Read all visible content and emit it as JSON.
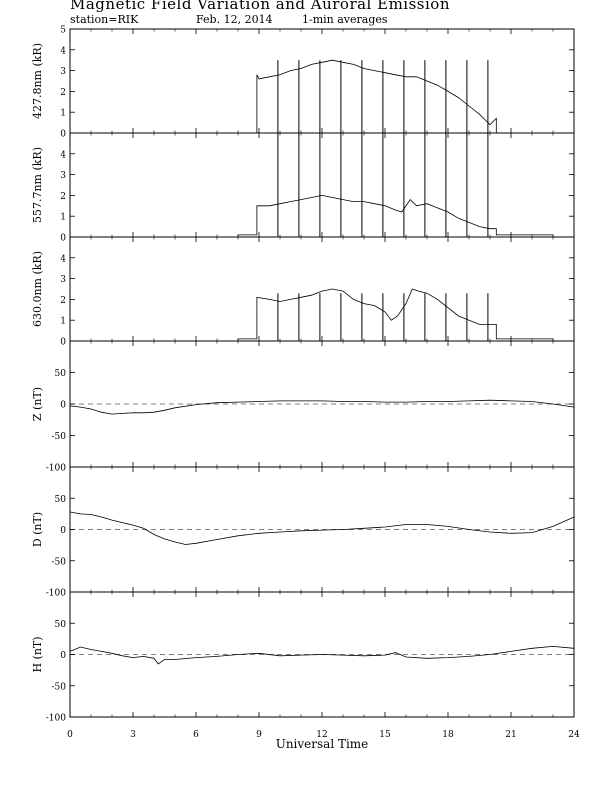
{
  "header": {
    "title": "Magnetic Field Variation and Auroral Emission",
    "station": "station=RIK",
    "date": "Feb. 12, 2014",
    "averaging": "1-min averages"
  },
  "chart_data": [
    {
      "type": "line",
      "ylabel": "427.8nm (kR)",
      "ylim": [
        0,
        5
      ],
      "yticks": [
        0,
        1,
        2,
        3,
        4,
        5
      ],
      "ytick_labels": [
        "0",
        "1",
        "2",
        "3",
        "4",
        "5"
      ],
      "zero_line": false,
      "series": [
        {
          "x": [
            0,
            8.9,
            8.9,
            9.0,
            9.5,
            10.0,
            10.5,
            11.0,
            11.5,
            12.0,
            12.5,
            13.0,
            13.5,
            14.0,
            14.5,
            15.0,
            15.5,
            16.0,
            16.5,
            17.0,
            17.5,
            18.0,
            18.5,
            19.0,
            19.5,
            19.8,
            20.0,
            20.3,
            20.3,
            24
          ],
          "y": [
            0,
            0,
            2.8,
            2.6,
            2.7,
            2.8,
            3.0,
            3.1,
            3.3,
            3.4,
            3.5,
            3.4,
            3.3,
            3.1,
            3.0,
            2.9,
            2.8,
            2.7,
            2.7,
            2.5,
            2.3,
            2.0,
            1.7,
            1.3,
            0.9,
            0.6,
            0.4,
            0.7,
            0,
            0
          ]
        }
      ],
      "spikes": {
        "x": [
          9.9,
          10.9,
          11.9,
          12.9,
          13.9,
          14.9,
          15.9,
          16.9,
          17.9,
          18.9,
          19.9
        ],
        "bottom": 0,
        "top": 3.5
      }
    },
    {
      "type": "line",
      "ylabel": "557.7nm (kR)",
      "ylim": [
        0,
        5
      ],
      "yticks": [
        0,
        1,
        2,
        3,
        4
      ],
      "ytick_labels": [
        "0",
        "1",
        "2",
        "3",
        "4"
      ],
      "zero_line": false,
      "series": [
        {
          "x": [
            0,
            8.0,
            8.0,
            8.9,
            8.9,
            9.5,
            10.0,
            10.5,
            11.0,
            11.5,
            12.0,
            12.5,
            13.0,
            13.5,
            14.0,
            14.5,
            15.0,
            15.5,
            15.8,
            16.2,
            16.5,
            17.0,
            17.5,
            18.0,
            18.5,
            19.0,
            19.5,
            20.0,
            20.3,
            20.3,
            23.0,
            23.0,
            24
          ],
          "y": [
            0,
            0,
            0.1,
            0.1,
            1.5,
            1.5,
            1.6,
            1.7,
            1.8,
            1.9,
            2.0,
            1.9,
            1.8,
            1.7,
            1.7,
            1.6,
            1.5,
            1.3,
            1.2,
            1.8,
            1.5,
            1.6,
            1.4,
            1.2,
            0.9,
            0.7,
            0.5,
            0.4,
            0.4,
            0.1,
            0.1,
            0,
            0
          ]
        }
      ],
      "spikes": {
        "x": [
          9.9,
          10.9,
          11.9,
          12.9,
          13.9,
          14.9,
          15.9,
          16.9,
          17.9,
          18.9,
          19.9
        ],
        "bottom": 0,
        "top": 5
      }
    },
    {
      "type": "line",
      "ylabel": "630.0nm (kR)",
      "ylim": [
        0,
        5
      ],
      "yticks": [
        0,
        1,
        2,
        3,
        4
      ],
      "ytick_labels": [
        "0",
        "1",
        "2",
        "3",
        "4"
      ],
      "zero_line": false,
      "series": [
        {
          "x": [
            0,
            8.0,
            8.0,
            8.9,
            8.9,
            9.5,
            10.0,
            10.5,
            11.0,
            11.5,
            12.0,
            12.5,
            13.0,
            13.5,
            14.0,
            14.5,
            15.0,
            15.3,
            15.6,
            16.0,
            16.3,
            16.6,
            17.0,
            17.5,
            18.0,
            18.5,
            19.0,
            19.5,
            20.0,
            20.3,
            20.3,
            23.0,
            23.0,
            24
          ],
          "y": [
            0,
            0,
            0.1,
            0.1,
            2.1,
            2.0,
            1.9,
            2.0,
            2.1,
            2.2,
            2.4,
            2.5,
            2.4,
            2.0,
            1.8,
            1.7,
            1.4,
            1.0,
            1.2,
            1.8,
            2.5,
            2.4,
            2.3,
            2.0,
            1.6,
            1.2,
            1.0,
            0.8,
            0.8,
            0.8,
            0.1,
            0.1,
            0,
            0
          ]
        }
      ],
      "spikes": {
        "x": [
          9.9,
          10.9,
          11.9,
          12.9,
          13.9,
          14.9,
          15.9,
          16.9,
          17.9,
          18.9,
          19.9
        ],
        "bottom": 0,
        "top": 2.3
      }
    },
    {
      "type": "line",
      "ylabel": "Z (nT)",
      "ylim": [
        -100,
        100
      ],
      "yticks": [
        -100,
        -50,
        0,
        50
      ],
      "ytick_labels": [
        "-100",
        "-50",
        "0",
        "50"
      ],
      "zero_line": true,
      "series": [
        {
          "x": [
            0,
            0.5,
            1.0,
            1.5,
            2.0,
            2.5,
            3.0,
            3.5,
            4.0,
            4.5,
            5.0,
            6.0,
            7.0,
            8.0,
            9.0,
            10.0,
            11.0,
            12.0,
            13.0,
            14.0,
            15.0,
            16.0,
            17.0,
            18.0,
            19.0,
            20.0,
            21.0,
            22.0,
            23.0,
            24.0
          ],
          "y": [
            -3,
            -5,
            -8,
            -13,
            -16,
            -15,
            -14,
            -14,
            -13,
            -10,
            -6,
            -1,
            2,
            3,
            4,
            5,
            5,
            5,
            4,
            4,
            3,
            3,
            4,
            4,
            5,
            6,
            5,
            4,
            0,
            -5
          ]
        }
      ],
      "spikes": null
    },
    {
      "type": "line",
      "ylabel": "D (nT)",
      "ylim": [
        -100,
        100
      ],
      "yticks": [
        -100,
        -50,
        0,
        50
      ],
      "ytick_labels": [
        "-100",
        "-50",
        "0",
        "50"
      ],
      "zero_line": true,
      "series": [
        {
          "x": [
            0,
            0.5,
            1.0,
            1.5,
            2.0,
            2.5,
            3.0,
            3.5,
            4.0,
            4.5,
            5.0,
            5.5,
            6.0,
            7.0,
            8.0,
            9.0,
            10.0,
            11.0,
            12.0,
            13.0,
            14.0,
            15.0,
            16.0,
            17.0,
            18.0,
            19.0,
            20.0,
            21.0,
            22.0,
            23.0,
            24.0
          ],
          "y": [
            28,
            25,
            24,
            20,
            15,
            11,
            7,
            2,
            -8,
            -15,
            -20,
            -24,
            -22,
            -16,
            -10,
            -6,
            -4,
            -2,
            -1,
            0,
            2,
            4,
            8,
            8,
            5,
            0,
            -4,
            -6,
            -5,
            5,
            20
          ]
        }
      ],
      "spikes": null
    },
    {
      "type": "line",
      "ylabel": "H (nT)",
      "ylim": [
        -100,
        100
      ],
      "yticks": [
        -100,
        -50,
        0,
        50
      ],
      "ytick_labels": [
        "-100",
        "-50",
        "0",
        "50"
      ],
      "zero_line": true,
      "series": [
        {
          "x": [
            0,
            0.5,
            1.0,
            1.5,
            2.0,
            2.5,
            3.0,
            3.5,
            4.0,
            4.2,
            4.5,
            5.0,
            6.0,
            7.0,
            8.0,
            9.0,
            10.0,
            11.0,
            12.0,
            13.0,
            14.0,
            15.0,
            15.5,
            16.0,
            17.0,
            18.0,
            19.0,
            20.0,
            21.0,
            22.0,
            23.0,
            24.0
          ],
          "y": [
            5,
            12,
            8,
            5,
            2,
            -2,
            -5,
            -3,
            -6,
            -15,
            -8,
            -8,
            -5,
            -3,
            0,
            2,
            -2,
            -1,
            0,
            -1,
            -2,
            -1,
            3,
            -4,
            -6,
            -5,
            -3,
            0,
            5,
            10,
            13,
            10
          ]
        }
      ],
      "spikes": null
    }
  ],
  "x_axis": {
    "label": "Universal Time",
    "ticks": [
      0,
      3,
      6,
      9,
      12,
      15,
      18,
      21,
      24
    ],
    "tick_labels": [
      "0",
      "3",
      "6",
      "9",
      "12",
      "15",
      "18",
      "21",
      "24"
    ],
    "range": [
      0,
      24
    ]
  }
}
